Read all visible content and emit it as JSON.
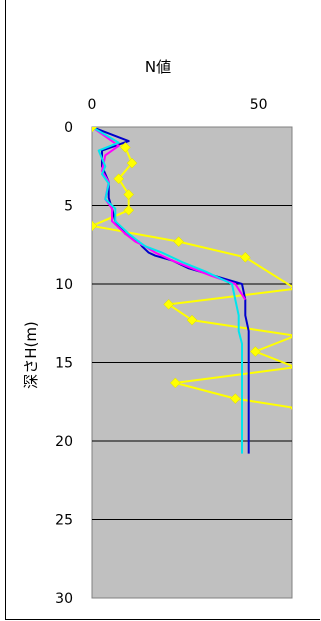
{
  "chart_data": {
    "type": "line",
    "title": "N値",
    "xlabel": "",
    "ylabel": "深さH(m)",
    "xlim": [
      0,
      60
    ],
    "ylim": [
      0,
      30
    ],
    "y_inverted": true,
    "x_ticks": [
      "0",
      "50"
    ],
    "y_ticks": [
      "0",
      "5",
      "10",
      "15",
      "20",
      "25",
      "30"
    ],
    "plot_background": "#c0c0c0",
    "grid": true,
    "series": [
      {
        "color": "#ffff00",
        "marker": "diamond",
        "x": [
          0,
          10,
          12,
          8,
          11,
          11,
          0,
          26,
          46,
          61,
          23,
          30,
          61,
          49,
          61,
          25,
          43,
          61
        ],
        "y": [
          0,
          1.3,
          2.3,
          3.3,
          4.3,
          5.3,
          6.3,
          7.3,
          8.3,
          10.3,
          11.3,
          12.3,
          13.3,
          14.3,
          15.3,
          16.3,
          17.3,
          17.9
        ]
      },
      {
        "color": "#0000cc",
        "marker": "none",
        "x": [
          0,
          11,
          3,
          3,
          5,
          5,
          6,
          7,
          10,
          14,
          15,
          17,
          19,
          24,
          29,
          37,
          45,
          46,
          46,
          47,
          47,
          47
        ],
        "y": [
          0,
          0.9,
          1.5,
          2.5,
          3.5,
          4.5,
          5.2,
          6.0,
          6.8,
          7.3,
          7.6,
          8.0,
          8.2,
          8.5,
          9.0,
          9.5,
          10.0,
          11.0,
          12.0,
          13.0,
          13.5,
          20.8
        ]
      },
      {
        "color": "#ff00ff",
        "marker": "none",
        "x": [
          0,
          8,
          4,
          3,
          5,
          4,
          6,
          6,
          10,
          13,
          16,
          19,
          24,
          30,
          36,
          43,
          46
        ],
        "y": [
          0,
          1.2,
          1.8,
          2.8,
          3.5,
          4.6,
          5.2,
          6.0,
          6.8,
          7.3,
          7.6,
          8.0,
          8.5,
          9.0,
          9.5,
          10.0,
          11.0
        ]
      },
      {
        "color": "#00e5ee",
        "marker": "none",
        "x": [
          0,
          8,
          2,
          4,
          3,
          5,
          4,
          7,
          7,
          11,
          14,
          16,
          21,
          27,
          34,
          42,
          43,
          44,
          44,
          45,
          45
        ],
        "y": [
          0,
          1.0,
          1.5,
          2.5,
          3.0,
          3.6,
          4.6,
          5.2,
          6.0,
          6.8,
          7.3,
          7.6,
          8.0,
          8.6,
          9.2,
          10.0,
          11.0,
          12.0,
          13.0,
          13.8,
          20.8
        ]
      }
    ]
  }
}
